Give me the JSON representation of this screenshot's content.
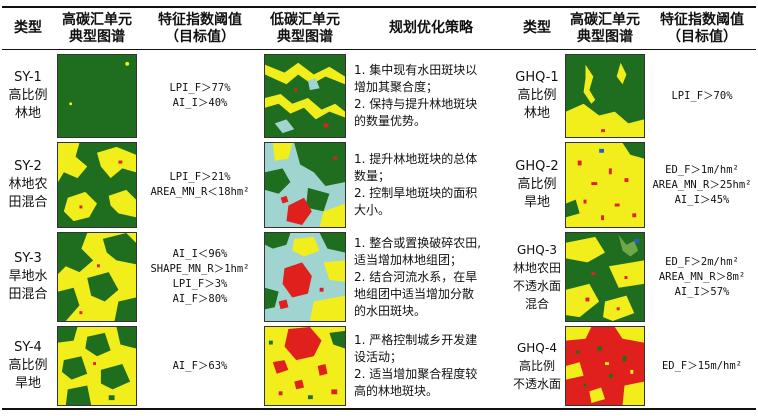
{
  "headers": {
    "type": "类型",
    "high_map": "高碳汇单元\n典型图谱",
    "index": "特征指数阈值\n（目标值）",
    "low_map": "低碳汇单元\n典型图谱",
    "strategy": "规划优化策略",
    "type2": "类型",
    "high_map2": "高碳汇单元\n典型图谱",
    "index2": "特征指数阈值\n（目标值）"
  },
  "rows": [
    {
      "type": "SY-1\n高比例\n林地",
      "index": "LPI_F＞77%\nAI_I＞40%",
      "strategy": "1. 集中现有水田斑块以\n增加其聚合度；\n2. 保持与提升林地斑块\n的数量优势。",
      "type2": "GHQ-1\n高比例\n林地",
      "index2": "LPI_F＞70%"
    },
    {
      "type": "SY-2\n林地农\n田混合",
      "index": "LPI_F＞21%\nAREA_MN_R＜18hm²",
      "strategy": "1. 提升林地斑块的总体\n数量；\n2. 控制旱地斑块的面积\n大小。",
      "type2": "GHQ-2\n高比例\n旱地",
      "index2": "ED_F＞1m/hm²\nAREA_MN_R＞25hm²\nAI_I＞45%"
    },
    {
      "type": "SY-3\n旱地水\n田混合",
      "index": "AI_I＜96%\nSHAPE_MN_R＞1hm²\nLPI_F＞3%\nAI_F＞80%",
      "strategy": "1. 整合或置换破碎农田,\n适当增加林地组团；\n2. 结合河流水系，在旱\n地组团中适当增加分散\n的水田斑块。",
      "type2": "GHQ-3\n林地农田\n不透水面\n混合",
      "index2": "ED_F＞2m/hm²\nAREA_MN_R＞8m²\nAI_I＞57%"
    },
    {
      "type": "SY-4\n高比例\n旱地",
      "index": "AI_F＞63%",
      "strategy": "1. 严格控制城乡开发建\n设活动；\n2. 适当增加聚合程度较\n高的林地斑块。",
      "type2": "GHQ-4\n高比例\n不透水面",
      "index2": "ED_F＞15m/hm²"
    }
  ],
  "colors": {
    "forest": "#1f6e1f",
    "dryland": "#f2ee1c",
    "paddy": "#9fd4d0",
    "impervious": "#e0201c",
    "water": "#2a5bd7",
    "grass": "#6fa84a"
  }
}
